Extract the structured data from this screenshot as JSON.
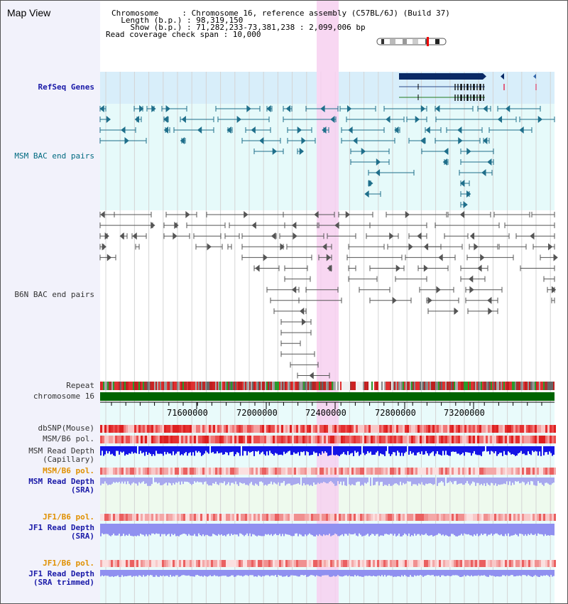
{
  "header": {
    "title": "Map View",
    "info_lines": [
      "Chromosome     : Chromosome 16, reference assembly (C57BL/6J) (Build 37)",
      "  Length (b.p.) : 98,319,150",
      "    Show (b.p.) : 71,282,233-73,381,238 : 2,099,006 bp",
      "Read coverage check span : 10,000"
    ]
  },
  "tracks": {
    "refseq": "RefSeq Genes",
    "msm_bac": "MSM BAC end pairs",
    "b6n_bac": "B6N BAC end pairs",
    "repeat": "Repeat",
    "chromosome": "chromosome 16",
    "dbsnp": "dbSNP(Mouse)",
    "msm_b6_pol_1": "MSM/B6 pol.",
    "msm_read_depth_cap": "MSM Read Depth\n(Capillary)",
    "msm_b6_pol_2": "MSM/B6 pol.",
    "msm_read_depth_sra": "MSM Read Depth\n(SRA)",
    "jf1_b6_pol_1": "JF1/B6 pol.",
    "jf1_read_depth_sra": "JF1 Read Depth\n(SRA)",
    "jf1_b6_pol_2": "JF1/B6 pol.",
    "jf1_read_depth_trimmed": "JF1 Read Depth\n(SRA trimmed)"
  },
  "axis": {
    "ticks": [
      "71600000",
      "72000000",
      "72400000",
      "72800000",
      "73200000"
    ]
  },
  "colors": {
    "highlight": "#f7d0f0",
    "refseq_bg": "#d8eefa",
    "msm_bg": "#e6fafa",
    "teal_feature": "#1f6f8b",
    "gray_feature": "#555555",
    "chromosome_bar": "#006400",
    "depth_blue": "#1414e6",
    "depth_light": "#9090f0",
    "pol_red": "#e83030"
  }
}
